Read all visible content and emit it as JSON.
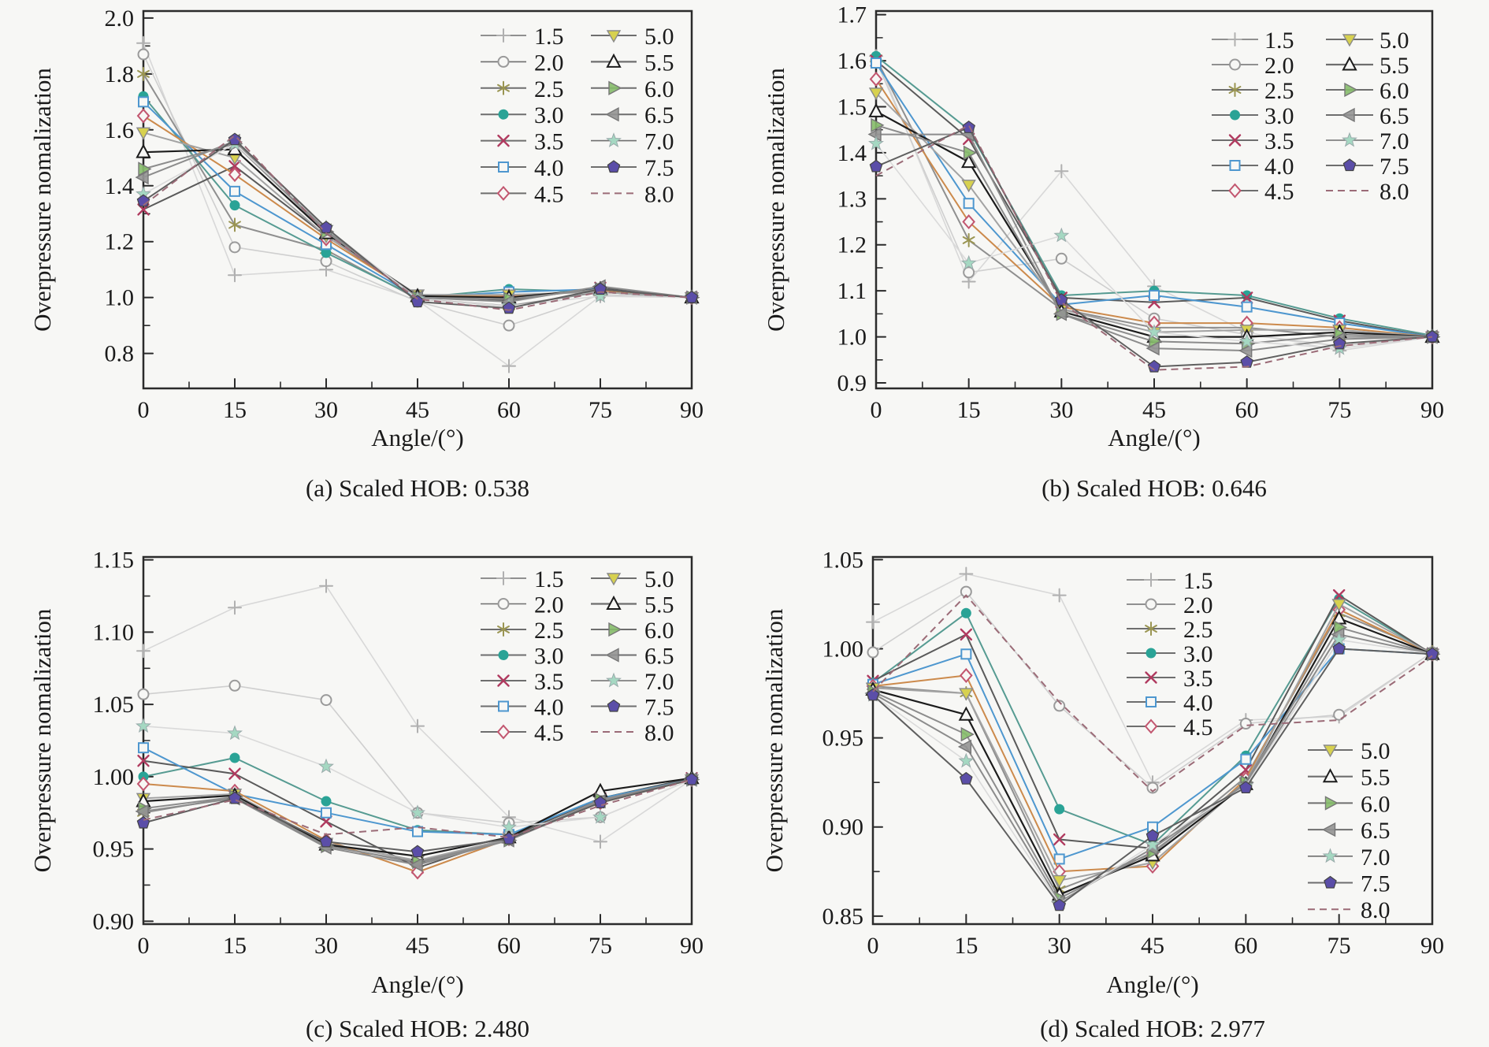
{
  "figure": {
    "background": "#f7f7f5",
    "frame_color": "#2b2b2b",
    "ylabel": "Overpressure nomalization",
    "xlabel": "Angle/(°)",
    "series_styles": [
      {
        "label": "1.5",
        "marker": "plus",
        "color": "#b0b0b0",
        "line": "#d8d8d8",
        "width": 1.6,
        "dash": ""
      },
      {
        "label": "2.0",
        "marker": "circle-open",
        "color": "#9a9a9a",
        "line": "#cfcfcf",
        "width": 1.6,
        "dash": ""
      },
      {
        "label": "2.5",
        "marker": "asterisk",
        "color": "#9a9552",
        "line": "#8f8f8f",
        "width": 2,
        "dash": ""
      },
      {
        "label": "3.0",
        "marker": "circle-fill",
        "color": "#2aa396",
        "line": "#569b92",
        "width": 2,
        "dash": ""
      },
      {
        "label": "3.5",
        "marker": "x",
        "color": "#b03a5f",
        "line": "#5a5a5a",
        "width": 2,
        "dash": ""
      },
      {
        "label": "4.0",
        "marker": "square-open",
        "color": "#4e97cf",
        "line": "#4e97cf",
        "width": 2,
        "dash": ""
      },
      {
        "label": "4.5",
        "marker": "diamond-open",
        "color": "#c2566f",
        "line": "#cc8a4c",
        "width": 2,
        "dash": ""
      },
      {
        "label": "5.0",
        "marker": "triangle-down-fill",
        "color": "#d7d14f",
        "line": "#a3a3a3",
        "width": 2,
        "dash": ""
      },
      {
        "label": "5.5",
        "marker": "triangle-up-open",
        "color": "#1c1c1c",
        "line": "#1c1c1c",
        "width": 2.2,
        "dash": ""
      },
      {
        "label": "6.0",
        "marker": "triangle-right",
        "color": "#85bb6a",
        "line": "#8c8c8c",
        "width": 2,
        "dash": ""
      },
      {
        "label": "6.5",
        "marker": "triangle-left",
        "color": "#949494",
        "line": "#8c8c8c",
        "width": 2,
        "dash": ""
      },
      {
        "label": "7.0",
        "marker": "star",
        "color": "#a5d8c2",
        "line": "#dadada",
        "width": 1.6,
        "dash": ""
      },
      {
        "label": "7.5",
        "marker": "pentagon-fill",
        "color": "#5b4ea8",
        "line": "#5f5f5f",
        "width": 2,
        "dash": ""
      },
      {
        "label": "8.0",
        "marker": "none",
        "color": "#9b6b77",
        "line": "#9b6b77",
        "width": 2,
        "dash": "9 6"
      }
    ]
  },
  "chart_data": [
    {
      "type": "line",
      "caption": "(a) Scaled HOB: 0.538",
      "xlabel": "Angle/(°)",
      "ylabel": "Overpressure nomalization",
      "legend_position": "upper right, two columns",
      "x": [
        0,
        15,
        30,
        45,
        60,
        75,
        90
      ],
      "xticks": [
        "0",
        "15",
        "30",
        "45",
        "60",
        "75",
        "90"
      ],
      "yticks": [
        "2.0",
        "1.8",
        "1.6",
        "1.4",
        "1.2",
        "1.0",
        "0.8"
      ],
      "ylim": [
        0.675,
        2.025
      ],
      "series": [
        {
          "name": "1.5",
          "values": [
            1.91,
            1.08,
            1.1,
            0.99,
            0.755,
            1.005,
            1.0
          ]
        },
        {
          "name": "2.0",
          "values": [
            1.87,
            1.18,
            1.13,
            0.985,
            0.9,
            1.01,
            1.0
          ]
        },
        {
          "name": "2.5",
          "values": [
            1.8,
            1.26,
            1.17,
            0.995,
            0.97,
            1.02,
            1.0
          ]
        },
        {
          "name": "3.0",
          "values": [
            1.72,
            1.33,
            1.16,
            1.0,
            1.03,
            1.02,
            1.0
          ]
        },
        {
          "name": "3.5",
          "values": [
            1.315,
            1.47,
            1.22,
            1.005,
            0.99,
            1.035,
            1.0
          ]
        },
        {
          "name": "4.0",
          "values": [
            1.7,
            1.38,
            1.19,
            1.0,
            1.02,
            1.03,
            1.0
          ]
        },
        {
          "name": "4.5",
          "values": [
            1.65,
            1.44,
            1.21,
            1.005,
            1.005,
            1.025,
            1.0
          ]
        },
        {
          "name": "5.0",
          "values": [
            1.59,
            1.5,
            1.22,
            1.01,
            1.01,
            1.02,
            1.0
          ]
        },
        {
          "name": "5.5",
          "values": [
            1.52,
            1.53,
            1.23,
            1.005,
            1.0,
            1.03,
            1.0
          ]
        },
        {
          "name": "6.0",
          "values": [
            1.46,
            1.55,
            1.235,
            1.0,
            0.995,
            1.03,
            1.0
          ]
        },
        {
          "name": "6.5",
          "values": [
            1.43,
            1.56,
            1.24,
            1.0,
            0.985,
            1.04,
            1.0
          ]
        },
        {
          "name": "7.0",
          "values": [
            1.37,
            1.55,
            1.25,
            0.995,
            0.97,
            1.005,
            1.0
          ]
        },
        {
          "name": "7.5",
          "values": [
            1.345,
            1.565,
            1.25,
            0.985,
            0.962,
            1.03,
            1.0
          ]
        },
        {
          "name": "8.0",
          "values": [
            1.33,
            1.58,
            1.23,
            0.995,
            0.955,
            1.02,
            1.0
          ]
        }
      ]
    },
    {
      "type": "line",
      "caption": "(b) Scaled HOB: 0.646",
      "xlabel": "Angle/(°)",
      "ylabel": "Overpressure nomalization",
      "legend_position": "upper right, two columns",
      "x": [
        0,
        15,
        30,
        45,
        60,
        75,
        90
      ],
      "xticks": [
        "0",
        "15",
        "30",
        "45",
        "60",
        "75",
        "90"
      ],
      "yticks": [
        "1.7",
        "1.6",
        "1.5",
        "1.4",
        "1.3",
        "1.2",
        "1.1",
        "1.0",
        "0.9"
      ],
      "ylim": [
        0.888,
        1.708
      ],
      "series": [
        {
          "name": "1.5",
          "values": [
            1.61,
            1.12,
            1.36,
            1.11,
            1.01,
            0.97,
            1.0
          ]
        },
        {
          "name": "2.0",
          "values": [
            1.6,
            1.14,
            1.17,
            1.04,
            1.005,
            0.98,
            1.0
          ]
        },
        {
          "name": "2.5",
          "values": [
            1.605,
            1.21,
            1.06,
            1.02,
            1.02,
            1.0,
            1.0
          ]
        },
        {
          "name": "3.0",
          "values": [
            1.61,
            1.45,
            1.09,
            1.1,
            1.09,
            1.04,
            1.003
          ]
        },
        {
          "name": "3.5",
          "values": [
            1.6,
            1.43,
            1.085,
            1.075,
            1.085,
            1.035,
            1.0
          ]
        },
        {
          "name": "4.0",
          "values": [
            1.595,
            1.29,
            1.07,
            1.09,
            1.065,
            1.03,
            1.0
          ]
        },
        {
          "name": "4.5",
          "values": [
            1.56,
            1.25,
            1.065,
            1.03,
            1.03,
            1.02,
            1.0
          ]
        },
        {
          "name": "5.0",
          "values": [
            1.53,
            1.33,
            1.06,
            1.01,
            1.015,
            1.015,
            1.0
          ]
        },
        {
          "name": "5.5",
          "values": [
            1.49,
            1.38,
            1.055,
            1.0,
            1.0,
            1.01,
            1.0
          ]
        },
        {
          "name": "6.0",
          "values": [
            1.46,
            1.4,
            1.05,
            0.99,
            0.985,
            1.005,
            1.0
          ]
        },
        {
          "name": "6.5",
          "values": [
            1.44,
            1.44,
            1.05,
            0.975,
            0.97,
            0.995,
            1.0
          ]
        },
        {
          "name": "7.0",
          "values": [
            1.42,
            1.16,
            1.22,
            1.01,
            0.99,
            0.975,
            1.0
          ]
        },
        {
          "name": "7.5",
          "values": [
            1.37,
            1.455,
            1.08,
            0.935,
            0.945,
            0.985,
            1.0
          ]
        },
        {
          "name": "8.0",
          "values": [
            1.35,
            1.46,
            1.075,
            0.928,
            0.935,
            0.98,
            1.0
          ]
        }
      ]
    },
    {
      "type": "line",
      "caption": "(c) Scaled HOB: 2.480",
      "xlabel": "Angle/(°)",
      "ylabel": "Overpressure nomalization",
      "legend_position": "upper right, two columns",
      "x": [
        0,
        15,
        30,
        45,
        60,
        75,
        90
      ],
      "xticks": [
        "0",
        "15",
        "30",
        "45",
        "60",
        "75",
        "90"
      ],
      "yticks": [
        "1.15",
        "1.10",
        "1.05",
        "1.00",
        "0.95",
        "0.90"
      ],
      "ylim": [
        0.898,
        1.152
      ],
      "series": [
        {
          "name": "1.5",
          "values": [
            1.087,
            1.117,
            1.132,
            1.035,
            0.972,
            0.955,
            0.998
          ]
        },
        {
          "name": "2.0",
          "values": [
            1.057,
            1.063,
            1.053,
            0.975,
            0.968,
            0.972,
            0.998
          ]
        },
        {
          "name": "2.5",
          "values": [
            0.975,
            0.986,
            0.953,
            0.94,
            0.957,
            0.983,
            0.998
          ]
        },
        {
          "name": "3.0",
          "values": [
            1.0,
            1.013,
            0.983,
            0.963,
            0.96,
            0.985,
            0.999
          ]
        },
        {
          "name": "3.5",
          "values": [
            1.011,
            1.002,
            0.969,
            0.937,
            0.958,
            0.985,
            0.999
          ]
        },
        {
          "name": "4.0",
          "values": [
            1.02,
            0.988,
            0.975,
            0.962,
            0.96,
            0.985,
            0.998
          ]
        },
        {
          "name": "4.5",
          "values": [
            0.995,
            0.99,
            0.956,
            0.934,
            0.957,
            0.982,
            0.998
          ]
        },
        {
          "name": "5.0",
          "values": [
            0.985,
            0.988,
            0.954,
            0.942,
            0.957,
            0.983,
            0.998
          ]
        },
        {
          "name": "5.5",
          "values": [
            0.983,
            0.987,
            0.953,
            0.945,
            0.958,
            0.99,
            0.999
          ]
        },
        {
          "name": "6.0",
          "values": [
            0.978,
            0.986,
            0.952,
            0.941,
            0.956,
            0.984,
            0.998
          ]
        },
        {
          "name": "6.5",
          "values": [
            0.976,
            0.985,
            0.951,
            0.939,
            0.956,
            0.983,
            0.998
          ]
        },
        {
          "name": "7.0",
          "values": [
            1.035,
            1.03,
            1.007,
            0.975,
            0.965,
            0.972,
            0.998
          ]
        },
        {
          "name": "7.5",
          "values": [
            0.968,
            0.985,
            0.955,
            0.948,
            0.957,
            0.982,
            0.998
          ]
        },
        {
          "name": "8.0",
          "values": [
            0.97,
            0.984,
            0.96,
            0.965,
            0.958,
            0.98,
            0.998
          ]
        }
      ]
    },
    {
      "type": "line",
      "caption": "(d) Scaled HOB: 2.977",
      "xlabel": "Angle/(°)",
      "ylabel": "Overpressure nomalization",
      "legend_position": "split: 1.5–4.5 upper middle, 5.0–8.0 lower right",
      "x": [
        0,
        15,
        30,
        45,
        60,
        75,
        90
      ],
      "xticks": [
        "0",
        "15",
        "30",
        "45",
        "60",
        "75",
        "90"
      ],
      "yticks": [
        "1.05",
        "1.00",
        "0.95",
        "0.90",
        "0.85"
      ],
      "ylim": [
        0.8455,
        1.0515
      ],
      "series": [
        {
          "name": "1.5",
          "values": [
            1.015,
            1.042,
            1.03,
            0.925,
            0.96,
            0.962,
            0.998
          ]
        },
        {
          "name": "2.0",
          "values": [
            0.998,
            1.032,
            0.968,
            0.922,
            0.958,
            0.963,
            0.998
          ]
        },
        {
          "name": "2.5",
          "values": [
            0.979,
            0.975,
            0.865,
            0.885,
            0.928,
            1.02,
            0.998
          ]
        },
        {
          "name": "3.0",
          "values": [
            0.981,
            1.02,
            0.91,
            0.89,
            0.94,
            1.028,
            0.997
          ]
        },
        {
          "name": "3.5",
          "values": [
            0.982,
            1.008,
            0.893,
            0.888,
            0.932,
            1.03,
            0.997
          ]
        },
        {
          "name": "4.0",
          "values": [
            0.98,
            0.997,
            0.882,
            0.9,
            0.938,
            1.0,
            0.997
          ]
        },
        {
          "name": "4.5",
          "values": [
            0.979,
            0.985,
            0.875,
            0.878,
            0.927,
            1.022,
            0.997
          ]
        },
        {
          "name": "5.0",
          "values": [
            0.978,
            0.975,
            0.87,
            0.88,
            0.925,
            1.025,
            0.997
          ]
        },
        {
          "name": "5.5",
          "values": [
            0.977,
            0.963,
            0.862,
            0.884,
            0.924,
            1.017,
            0.997
          ]
        },
        {
          "name": "6.0",
          "values": [
            0.976,
            0.952,
            0.86,
            0.886,
            0.925,
            1.012,
            0.997
          ]
        },
        {
          "name": "6.5",
          "values": [
            0.975,
            0.945,
            0.858,
            0.888,
            0.924,
            1.008,
            0.997
          ]
        },
        {
          "name": "7.0",
          "values": [
            0.974,
            0.937,
            0.857,
            0.89,
            0.923,
            1.005,
            0.997
          ]
        },
        {
          "name": "7.5",
          "values": [
            0.974,
            0.927,
            0.856,
            0.895,
            0.922,
            1.0,
            0.997
          ]
        },
        {
          "name": "8.0",
          "values": [
            0.976,
            1.03,
            0.97,
            0.92,
            0.957,
            0.96,
            0.996
          ]
        }
      ]
    }
  ]
}
